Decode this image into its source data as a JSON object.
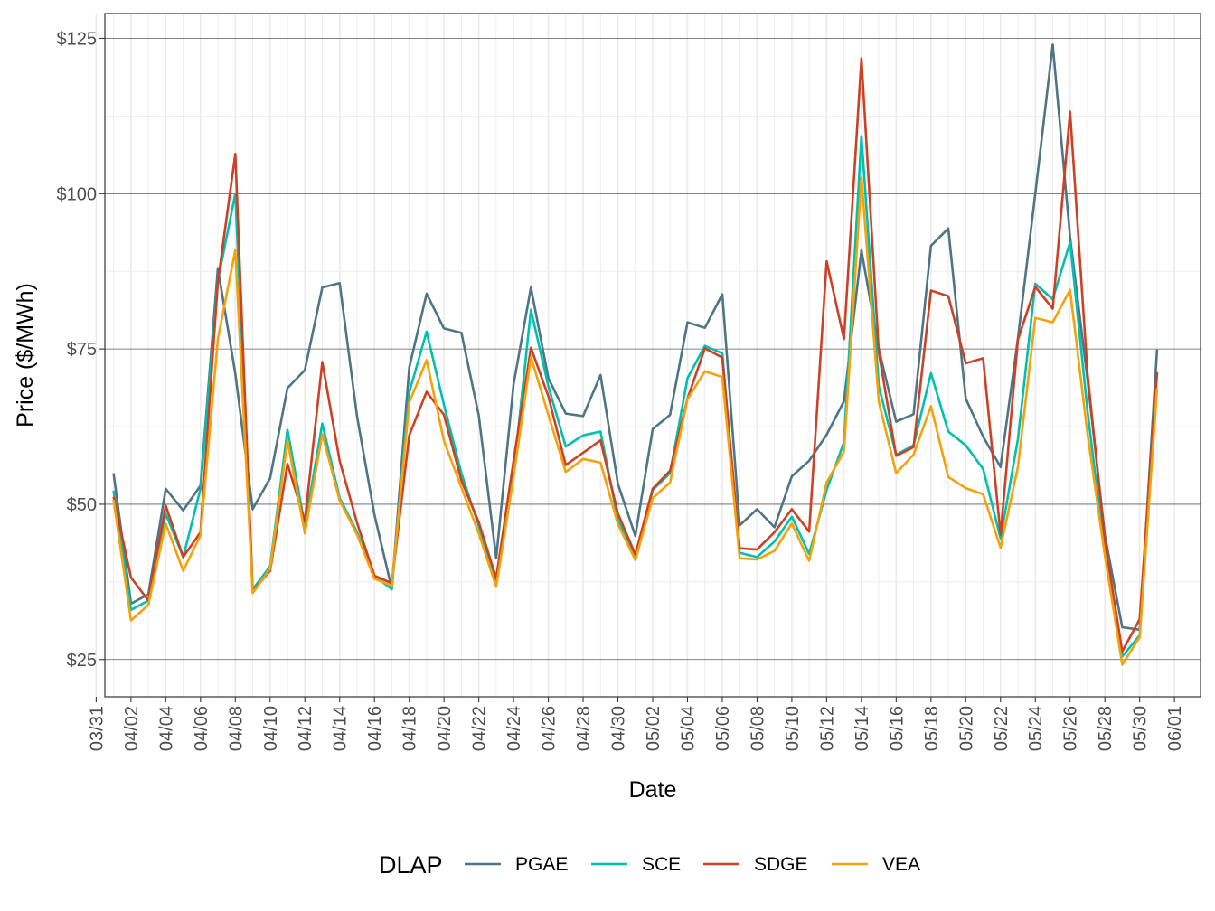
{
  "chart_data": {
    "type": "line",
    "xlabel": "Date",
    "ylabel": "Price ($/MWh)",
    "x_start_label": "03/31",
    "x_tick_labels": [
      "03/31",
      "04/02",
      "04/04",
      "04/06",
      "04/08",
      "04/10",
      "04/12",
      "04/14",
      "04/16",
      "04/18",
      "04/20",
      "04/22",
      "04/24",
      "04/26",
      "04/28",
      "04/30",
      "05/02",
      "05/04",
      "05/06",
      "05/08",
      "05/10",
      "05/12",
      "05/14",
      "05/16",
      "05/18",
      "05/20",
      "05/22",
      "05/24",
      "05/26",
      "05/28",
      "05/30",
      "06/01"
    ],
    "y_ticks": [
      25,
      50,
      75,
      100,
      125
    ],
    "y_tick_labels": [
      "$25",
      "$50",
      "$75",
      "$100",
      "$125"
    ],
    "ylim": [
      19,
      129
    ],
    "grid": true,
    "legend": {
      "title": "DLAP",
      "position": "bottom"
    },
    "dates": [
      "04/01",
      "04/02",
      "04/03",
      "04/04",
      "04/05",
      "04/06",
      "04/07",
      "04/08",
      "04/09",
      "04/10",
      "04/11",
      "04/12",
      "04/13",
      "04/14",
      "04/15",
      "04/16",
      "04/17",
      "04/18",
      "04/19",
      "04/20",
      "04/21",
      "04/22",
      "04/23",
      "04/24",
      "04/25",
      "04/26",
      "04/27",
      "04/28",
      "04/29",
      "04/30",
      "05/01",
      "05/02",
      "05/03",
      "05/04",
      "05/05",
      "05/06",
      "05/07",
      "05/08",
      "05/09",
      "05/10",
      "05/11",
      "05/12",
      "05/13",
      "05/14",
      "05/15",
      "05/16",
      "05/17",
      "05/18",
      "05/19",
      "05/20",
      "05/21",
      "05/22",
      "05/23",
      "05/24",
      "05/25",
      "05/26",
      "05/27",
      "05/28",
      "05/29",
      "05/30",
      "05/31"
    ],
    "series": [
      {
        "name": "PGAE",
        "color": "#4e7585",
        "values": [
          55.0,
          34.0,
          35.5,
          52.5,
          49.0,
          53.0,
          88.0,
          71.0,
          49.2,
          54.2,
          68.7,
          71.6,
          84.9,
          85.6,
          64.1,
          48.3,
          36.4,
          72.0,
          83.9,
          78.3,
          77.6,
          64.3,
          41.3,
          69.3,
          84.9,
          70.3,
          64.6,
          64.2,
          70.8,
          53.3,
          44.9,
          62.1,
          64.4,
          79.3,
          78.4,
          83.8,
          46.6,
          49.2,
          46.3,
          54.5,
          57.0,
          61.2,
          66.6,
          90.9,
          75.0,
          63.3,
          64.5,
          91.6,
          94.4,
          67.0,
          60.9,
          56.0,
          76.7,
          100.0,
          124.0,
          93.0,
          70.0,
          45.0,
          30.2,
          29.8,
          74.9
        ]
      },
      {
        "name": "SCE",
        "color": "#00c0b0",
        "values": [
          52.2,
          33.0,
          34.5,
          48.5,
          41.5,
          52.5,
          86.0,
          100.0,
          36.3,
          40.0,
          62.0,
          46.5,
          63.0,
          51.0,
          45.5,
          38.5,
          36.3,
          68.0,
          77.8,
          66.0,
          55.0,
          46.5,
          37.4,
          55.0,
          81.3,
          69.0,
          59.3,
          61.1,
          61.7,
          47.5,
          41.4,
          52.3,
          55.0,
          70.3,
          75.5,
          74.3,
          42.2,
          41.5,
          44.0,
          48.0,
          42.0,
          52.3,
          60.0,
          109.3,
          69.0,
          58.0,
          59.5,
          71.1,
          61.7,
          59.5,
          55.7,
          44.5,
          60.5,
          85.5,
          83.0,
          92.2,
          65.0,
          42.0,
          25.5,
          28.9,
          71.2
        ]
      },
      {
        "name": "SDGE",
        "color": "#cc4125",
        "values": [
          51.2,
          38.2,
          34.5,
          49.8,
          41.5,
          45.5,
          85.8,
          106.4,
          36.0,
          39.3,
          56.5,
          47.3,
          72.9,
          57.0,
          47.0,
          38.5,
          37.3,
          61.1,
          68.1,
          64.4,
          53.8,
          47.1,
          38.1,
          57.0,
          75.2,
          67.4,
          56.3,
          58.3,
          60.3,
          48.5,
          41.9,
          52.5,
          55.4,
          67.0,
          75.1,
          73.6,
          42.9,
          42.7,
          45.5,
          49.2,
          45.6,
          89.1,
          76.6,
          121.8,
          74.5,
          57.8,
          59.2,
          84.4,
          83.5,
          72.7,
          73.5,
          45.1,
          76.5,
          85.0,
          81.5,
          113.2,
          71.0,
          44.0,
          26.3,
          31.5,
          71.3
        ]
      },
      {
        "name": "VEA",
        "color": "#f5a20a",
        "values": [
          50.7,
          31.3,
          33.8,
          46.9,
          39.3,
          45.0,
          76.6,
          90.9,
          35.7,
          39.6,
          60.3,
          45.3,
          61.3,
          50.6,
          45.1,
          38.0,
          36.9,
          66.4,
          73.2,
          60.2,
          52.7,
          45.3,
          36.7,
          54.4,
          73.7,
          64.4,
          55.2,
          57.3,
          56.7,
          46.8,
          41.0,
          51.0,
          53.5,
          66.9,
          71.4,
          70.5,
          41.3,
          41.1,
          42.5,
          46.9,
          40.9,
          53.5,
          58.5,
          102.6,
          66.5,
          55.0,
          58.0,
          65.8,
          54.4,
          52.6,
          51.6,
          43.0,
          56.0,
          80.0,
          79.3,
          84.5,
          61.3,
          41.7,
          24.2,
          28.6,
          68.7
        ]
      }
    ]
  }
}
